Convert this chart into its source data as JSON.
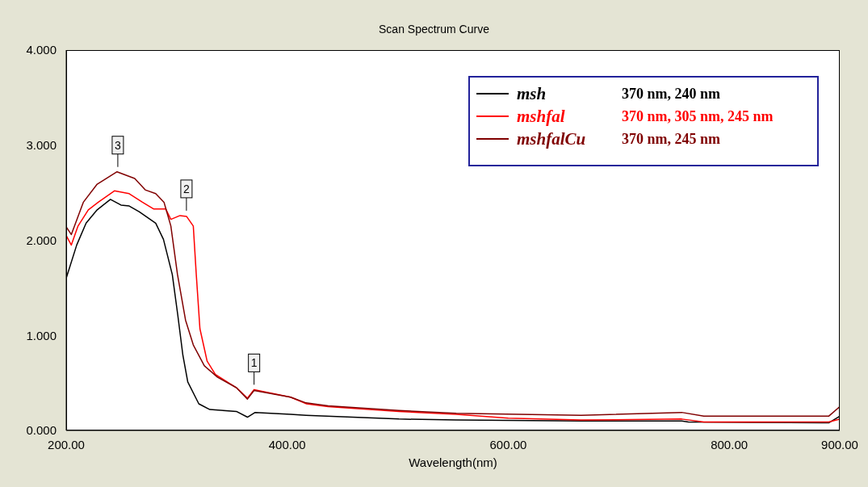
{
  "chart_data": {
    "type": "line",
    "title": "Scan Spectrum Curve",
    "xlabel": "Wavelength(nm)",
    "xlim": [
      200,
      900
    ],
    "ylim": [
      0,
      4
    ],
    "xticks": [
      {
        "value": 200,
        "label": "200.00"
      },
      {
        "value": 400,
        "label": "400.00"
      },
      {
        "value": 600,
        "label": "600.00"
      },
      {
        "value": 800,
        "label": "800.00"
      },
      {
        "value": 900,
        "label": "900.00"
      }
    ],
    "yticks": [
      {
        "value": 0,
        "label": "0.000"
      },
      {
        "value": 1,
        "label": "1.000"
      },
      {
        "value": 2,
        "label": "2.000"
      },
      {
        "value": 3,
        "label": "3.000"
      },
      {
        "value": 4,
        "label": "4.000"
      }
    ],
    "grid": false,
    "legend": "top right",
    "marker": "none",
    "line_style": "solid",
    "series": [
      {
        "name": "msh",
        "color": "#000000",
        "x": [
          200,
          209.5,
          218,
          228,
          240,
          249.6,
          257,
          266,
          281,
          288,
          296,
          301,
          305.6,
          310,
          320,
          330,
          354,
          364,
          371,
          403,
          417,
          501,
          553,
          666,
          757,
          763,
          890,
          900
        ],
        "values": [
          1.6,
          1.95,
          2.18,
          2.32,
          2.43,
          2.37,
          2.36,
          2.3,
          2.18,
          2.01,
          1.64,
          1.21,
          0.79,
          0.51,
          0.28,
          0.22,
          0.2,
          0.14,
          0.19,
          0.17,
          0.16,
          0.12,
          0.11,
          0.1,
          0.1,
          0.09,
          0.08,
          0.15
        ]
      },
      {
        "name": "mshfal",
        "color": "#ff0000",
        "x": [
          200,
          204.6,
          210.7,
          220,
          229,
          243.6,
          257,
          269,
          279,
          290,
          294.7,
          303,
          309,
          315,
          317.7,
          321,
          327.5,
          335,
          354,
          364,
          370,
          403,
          417.5,
          437,
          501,
          553,
          600,
          666,
          757,
          777,
          890,
          900
        ],
        "values": [
          2.05,
          1.95,
          2.15,
          2.32,
          2.4,
          2.52,
          2.49,
          2.4,
          2.33,
          2.33,
          2.22,
          2.26,
          2.25,
          2.15,
          1.64,
          1.07,
          0.73,
          0.59,
          0.45,
          0.34,
          0.43,
          0.35,
          0.28,
          0.25,
          0.2,
          0.17,
          0.13,
          0.11,
          0.12,
          0.09,
          0.09,
          0.12
        ]
      },
      {
        "name": "mshfalCu",
        "color": "#800000",
        "x": [
          200,
          204.6,
          215.5,
          228,
          246,
          262,
          271.5,
          281,
          288.5,
          294.7,
          300.7,
          308,
          315,
          325,
          337,
          354,
          364,
          370,
          403,
          417,
          437,
          501,
          553,
          666,
          757,
          777,
          890,
          900
        ],
        "values": [
          2.14,
          2.06,
          2.4,
          2.59,
          2.72,
          2.65,
          2.53,
          2.49,
          2.4,
          2.15,
          1.64,
          1.16,
          0.9,
          0.68,
          0.56,
          0.45,
          0.33,
          0.42,
          0.35,
          0.29,
          0.26,
          0.21,
          0.18,
          0.16,
          0.19,
          0.15,
          0.15,
          0.25
        ]
      }
    ],
    "annotations": [
      "370 nm, 240 nm",
      "370 nm, 305 nm, 245 nm",
      "370 nm, 245 nm",
      {
        "text": "1",
        "x": 370,
        "y": 0.43
      },
      {
        "text": "2",
        "x": 308.8,
        "y": 2.26
      },
      {
        "text": "3",
        "x": 246.7,
        "y": 2.72
      }
    ]
  }
}
